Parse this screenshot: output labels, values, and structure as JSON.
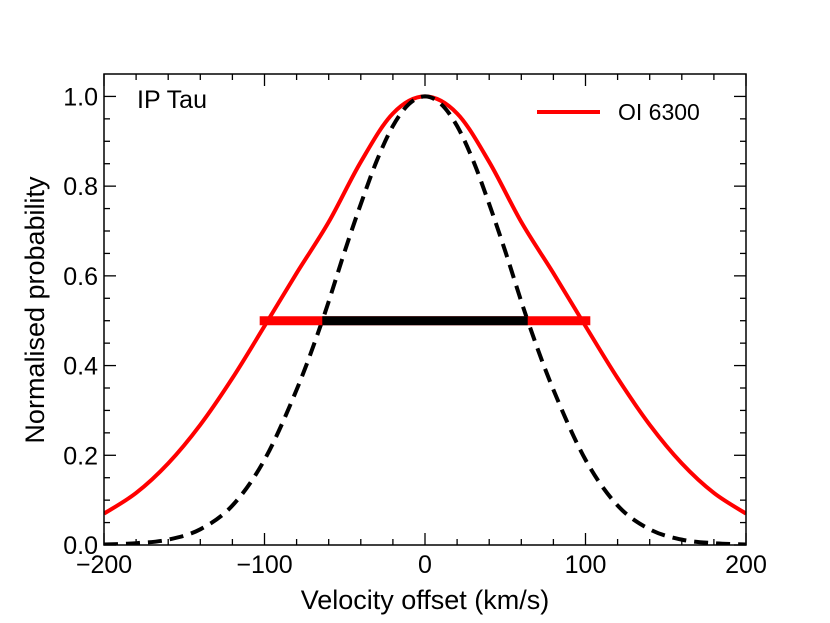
{
  "chart_data": {
    "type": "line",
    "title": "",
    "annotation": "IP Tau",
    "xlabel": "Velocity offset (km/s)",
    "ylabel": "Normalised probability",
    "xlim": [
      -200,
      200
    ],
    "ylim": [
      0.0,
      1.05
    ],
    "xticks": [
      -200,
      -100,
      0,
      100,
      200
    ],
    "xtick_labels": [
      "−200",
      "−100",
      "0",
      "100",
      "200"
    ],
    "yticks": [
      0.0,
      0.2,
      0.4,
      0.6,
      0.8,
      1.0
    ],
    "ytick_labels": [
      "0.0",
      "0.2",
      "0.4",
      "0.6",
      "0.8",
      "1.0"
    ],
    "grid": false,
    "legend_position": "top-right",
    "series": [
      {
        "name": "OI 6300",
        "color": "#ff0000",
        "style": "solid",
        "x": [
          -200,
          -180,
          -160,
          -140,
          -120,
          -100,
          -80,
          -60,
          -40,
          -20,
          0,
          20,
          40,
          60,
          80,
          100,
          120,
          140,
          160,
          180,
          200
        ],
        "y": [
          0.07,
          0.116,
          0.182,
          0.268,
          0.372,
          0.488,
          0.606,
          0.72,
          0.854,
          0.962,
          1.0,
          0.962,
          0.854,
          0.72,
          0.606,
          0.488,
          0.372,
          0.268,
          0.182,
          0.116,
          0.07
        ]
      },
      {
        "name": "",
        "color": "#000000",
        "style": "dashed",
        "x": [
          -200,
          -180,
          -160,
          -140,
          -120,
          -100,
          -80,
          -64,
          -50,
          -40,
          -30,
          -20,
          -10,
          0,
          10,
          20,
          30,
          40,
          50,
          64,
          80,
          100,
          120,
          140,
          160,
          180,
          200
        ],
        "y": [
          0.001,
          0.004,
          0.012,
          0.035,
          0.088,
          0.19,
          0.346,
          0.5,
          0.655,
          0.76,
          0.857,
          0.934,
          0.983,
          1.0,
          0.983,
          0.934,
          0.857,
          0.76,
          0.655,
          0.5,
          0.346,
          0.19,
          0.088,
          0.035,
          0.012,
          0.004,
          0.001
        ]
      }
    ],
    "fwhm_bars": [
      {
        "color": "#ff0000",
        "x": [
          -103,
          103
        ],
        "y": 0.5
      },
      {
        "color": "#000000",
        "x": [
          -64,
          64
        ],
        "y": 0.5
      }
    ]
  }
}
